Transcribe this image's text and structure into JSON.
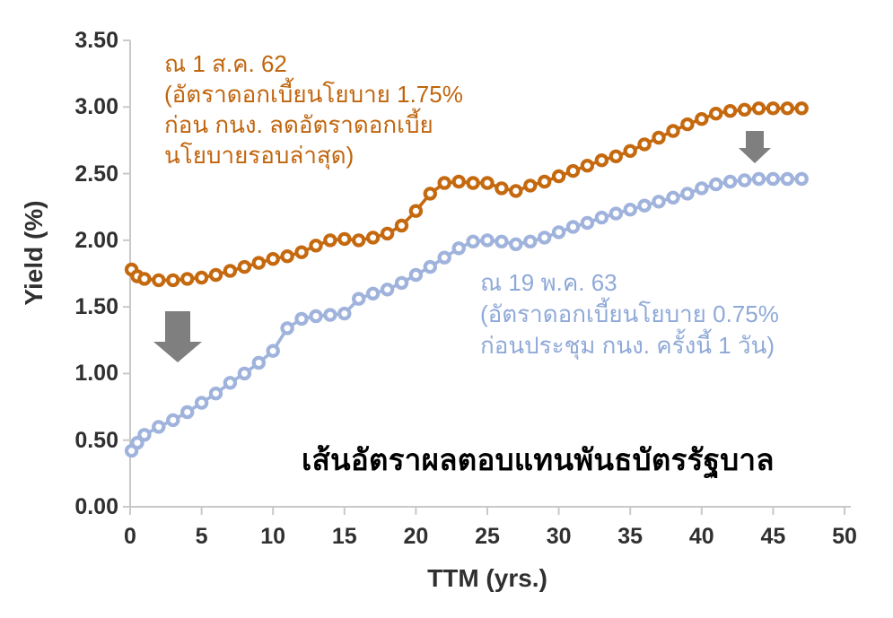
{
  "chart_data": {
    "type": "line",
    "title": "เส้นอัตราผลตอบแทนพันธบัตรรัฐบาล",
    "xlabel": "TTM (yrs.)",
    "ylabel": "Yield (%)",
    "xlim": [
      0,
      50
    ],
    "ylim": [
      0,
      3.5
    ],
    "grid": false,
    "legend": "none (labeled by colored annotations)",
    "x_ticks": [
      0,
      5,
      10,
      15,
      20,
      25,
      30,
      35,
      40,
      45,
      50
    ],
    "y_tick_labels": [
      "3.50",
      "3.00",
      "2.50",
      "2.00",
      "1.50",
      "1.00",
      "0.50",
      "0.00"
    ],
    "y_tick_values": [
      3.5,
      3.0,
      2.5,
      2.0,
      1.5,
      1.0,
      0.5,
      0.0
    ],
    "marker": "hollow-circle",
    "x": [
      0.1,
      0.5,
      1,
      2,
      3,
      4,
      5,
      6,
      7,
      8,
      9,
      10,
      11,
      12,
      13,
      14,
      15,
      16,
      17,
      18,
      19,
      20,
      21,
      22,
      23,
      24,
      25,
      26,
      27,
      28,
      29,
      30,
      31,
      32,
      33,
      34,
      35,
      36,
      37,
      38,
      39,
      40,
      41,
      42,
      43,
      44,
      45,
      46,
      47
    ],
    "series": [
      {
        "name": "ณ 1 ส.ค. 62",
        "color": "#C5690F",
        "values": [
          1.78,
          1.73,
          1.71,
          1.7,
          1.7,
          1.71,
          1.72,
          1.74,
          1.77,
          1.8,
          1.83,
          1.86,
          1.88,
          1.91,
          1.96,
          2.0,
          2.01,
          2.0,
          2.02,
          2.05,
          2.11,
          2.22,
          2.35,
          2.43,
          2.44,
          2.43,
          2.43,
          2.39,
          2.37,
          2.41,
          2.44,
          2.48,
          2.52,
          2.56,
          2.6,
          2.63,
          2.67,
          2.72,
          2.77,
          2.82,
          2.87,
          2.91,
          2.95,
          2.97,
          2.98,
          2.99,
          2.99,
          2.99,
          2.99
        ]
      },
      {
        "name": "ณ 19 พ.ค. 63",
        "color": "#9FB3DC",
        "values": [
          0.42,
          0.48,
          0.54,
          0.6,
          0.65,
          0.71,
          0.78,
          0.85,
          0.93,
          1.0,
          1.08,
          1.17,
          1.34,
          1.41,
          1.43,
          1.44,
          1.45,
          1.56,
          1.6,
          1.63,
          1.68,
          1.74,
          1.8,
          1.87,
          1.94,
          1.99,
          2.0,
          1.99,
          1.97,
          1.99,
          2.02,
          2.06,
          2.1,
          2.13,
          2.17,
          2.2,
          2.23,
          2.26,
          2.29,
          2.32,
          2.35,
          2.39,
          2.42,
          2.44,
          2.45,
          2.46,
          2.46,
          2.46,
          2.46
        ]
      }
    ]
  },
  "annotations": {
    "aug2019": {
      "color": "#C0650E",
      "lines": [
        "ณ 1 ส.ค. 62",
        "(อัตราดอกเบี้ยนโยบาย 1.75%",
        "ก่อน กนง. ลดอัตราดอกเบี้ย",
        "นโยบายรอบล่าสุด)"
      ]
    },
    "may2020": {
      "color": "#8FA9D8",
      "lines": [
        "ณ 19 พ.ค. 63",
        "(อัตราดอกเบี้ยนโยบาย 0.75%",
        "ก่อนประชุม กนง. ครั้งนี้ 1 วัน)"
      ]
    }
  },
  "colors": {
    "axis": "#C9C9C9",
    "arrow": "#7F7F7F",
    "tick_text": "#303030",
    "title_text": "#000000"
  }
}
